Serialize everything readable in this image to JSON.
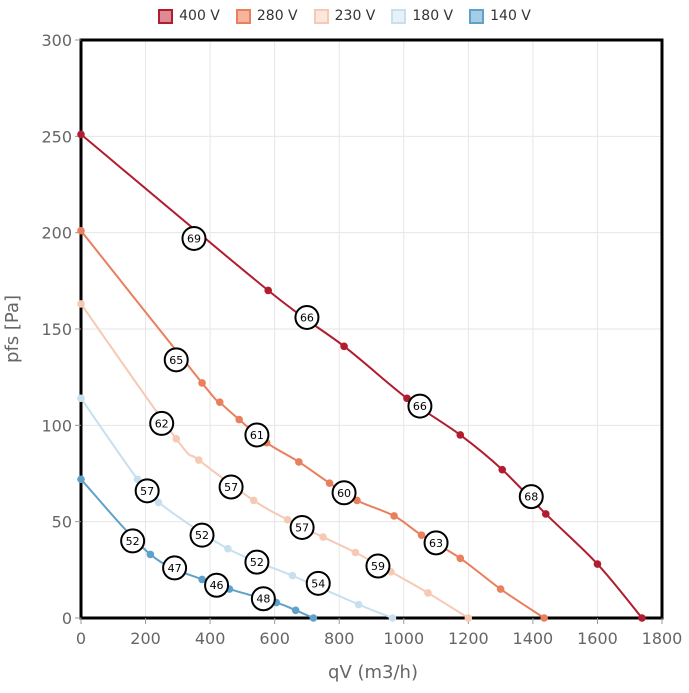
{
  "chart_data": {
    "type": "line",
    "xlabel": "qV (m3/h)",
    "ylabel": "pfs [Pa]",
    "xlim": [
      0,
      1800
    ],
    "ylim": [
      0,
      300
    ],
    "x_ticks": [
      0,
      200,
      400,
      600,
      800,
      1000,
      1200,
      1400,
      1600,
      1800
    ],
    "y_ticks": [
      0,
      50,
      100,
      150,
      200,
      250,
      300
    ],
    "grid": true,
    "legend_position": "top",
    "series": [
      {
        "name": "400 V",
        "color": "#b11c2e",
        "fill": "#de8a96",
        "points": [
          [
            0,
            251
          ],
          [
            580,
            170
          ],
          [
            815,
            141
          ],
          [
            1010,
            114
          ],
          [
            1175,
            95
          ],
          [
            1305,
            77
          ],
          [
            1440,
            54
          ],
          [
            1600,
            28
          ],
          [
            1738,
            0
          ]
        ],
        "labels": [
          {
            "x": 350,
            "y": 197,
            "text": "69"
          },
          {
            "x": 700,
            "y": 156,
            "text": "66"
          },
          {
            "x": 1050,
            "y": 110,
            "text": "66"
          },
          {
            "x": 1395,
            "y": 63,
            "text": "68"
          }
        ]
      },
      {
        "name": "280 V",
        "color": "#e97f5c",
        "fill": "#f5b49c",
        "points": [
          [
            0,
            201
          ],
          [
            375,
            122
          ],
          [
            430,
            112
          ],
          [
            490,
            103
          ],
          [
            575,
            91
          ],
          [
            675,
            81
          ],
          [
            770,
            70
          ],
          [
            855,
            61
          ],
          [
            970,
            53
          ],
          [
            1055,
            43
          ],
          [
            1175,
            31
          ],
          [
            1300,
            15
          ],
          [
            1435,
            0
          ]
        ],
        "labels": [
          {
            "x": 295,
            "y": 134,
            "text": "65"
          },
          {
            "x": 545,
            "y": 95,
            "text": "61"
          },
          {
            "x": 815,
            "y": 65,
            "text": "60"
          },
          {
            "x": 1100,
            "y": 39,
            "text": "63"
          }
        ]
      },
      {
        "name": "230 V",
        "color": "#f6c9b4",
        "fill": "#fde6dc",
        "points": [
          [
            0,
            163
          ],
          [
            295,
            93
          ],
          [
            365,
            82
          ],
          [
            535,
            61
          ],
          [
            640,
            51
          ],
          [
            750,
            42
          ],
          [
            850,
            34
          ],
          [
            960,
            24
          ],
          [
            1075,
            13
          ],
          [
            1200,
            0
          ]
        ],
        "labels": [
          {
            "x": 250,
            "y": 101,
            "text": "62"
          },
          {
            "x": 465,
            "y": 68,
            "text": "57"
          },
          {
            "x": 685,
            "y": 47,
            "text": "57"
          },
          {
            "x": 920,
            "y": 27,
            "text": "59"
          }
        ]
      },
      {
        "name": "180 V",
        "color": "#c7dfee",
        "fill": "#e6f1f8",
        "points": [
          [
            0,
            114
          ],
          [
            175,
            72
          ],
          [
            240,
            60
          ],
          [
            455,
            36
          ],
          [
            655,
            22
          ],
          [
            860,
            7
          ],
          [
            965,
            0
          ]
        ],
        "labels": [
          {
            "x": 205,
            "y": 66,
            "text": "57"
          },
          {
            "x": 375,
            "y": 43,
            "text": "52"
          },
          {
            "x": 545,
            "y": 29,
            "text": "52"
          },
          {
            "x": 735,
            "y": 18,
            "text": "54"
          }
        ]
      },
      {
        "name": "140 V",
        "color": "#5fa2c9",
        "fill": "#a6cde4",
        "points": [
          [
            0,
            72
          ],
          [
            215,
            33
          ],
          [
            375,
            20
          ],
          [
            460,
            15
          ],
          [
            605,
            8
          ],
          [
            665,
            4
          ],
          [
            720,
            0
          ]
        ],
        "labels": [
          {
            "x": 160,
            "y": 40,
            "text": "52"
          },
          {
            "x": 290,
            "y": 26,
            "text": "47"
          },
          {
            "x": 420,
            "y": 17,
            "text": "46"
          },
          {
            "x": 565,
            "y": 10,
            "text": "48"
          }
        ]
      }
    ]
  }
}
